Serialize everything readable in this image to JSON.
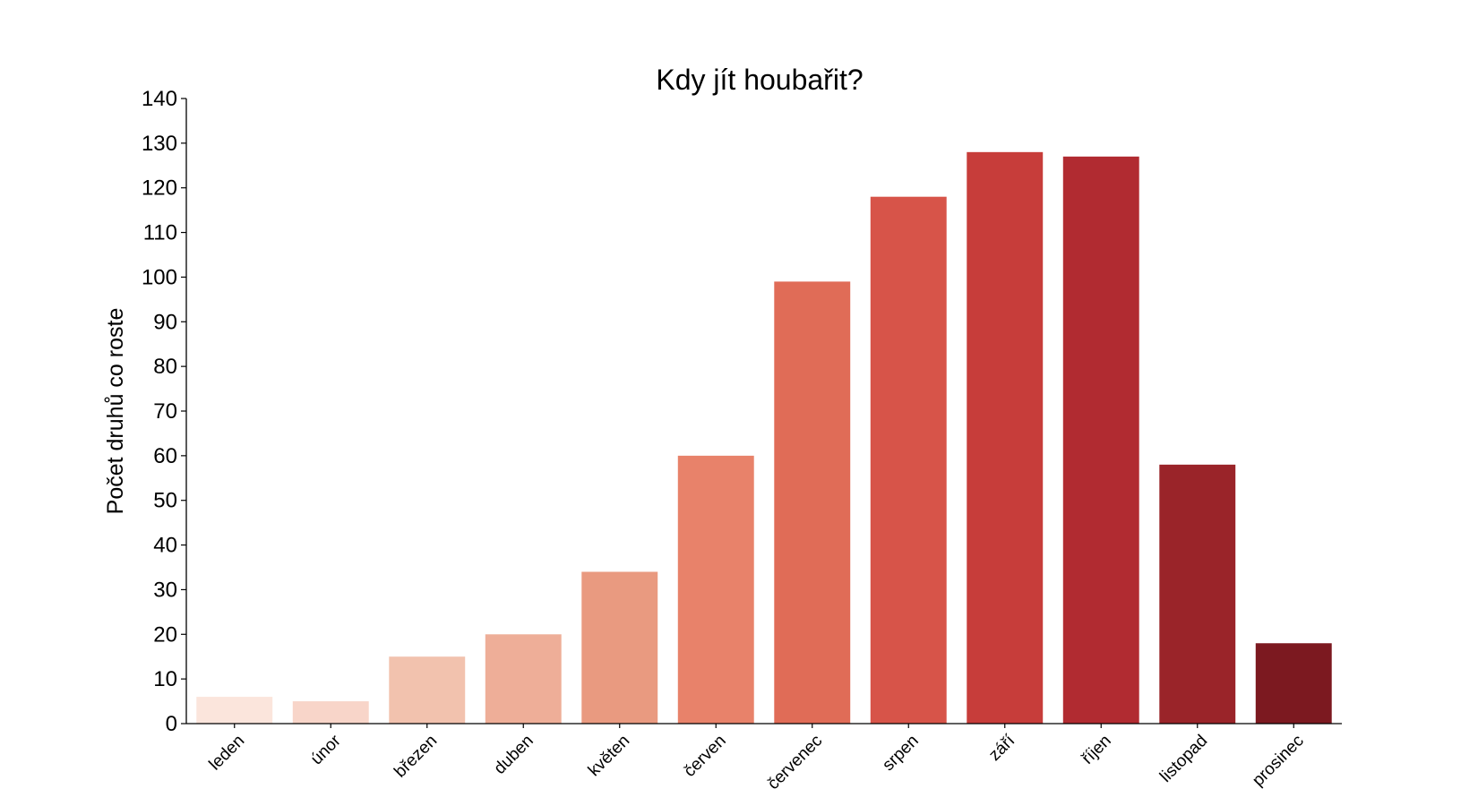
{
  "chart_data": {
    "type": "bar",
    "title": "Kdy jít houbařit?",
    "xlabel": "",
    "ylabel": "Počet druhů co roste",
    "ylim": [
      0,
      140
    ],
    "yticks": [
      0,
      10,
      20,
      30,
      40,
      50,
      60,
      70,
      80,
      90,
      100,
      110,
      120,
      130,
      140
    ],
    "grid": false,
    "legend": "none",
    "categories": [
      "leden",
      "únor",
      "březen",
      "duben",
      "květen",
      "červen",
      "červenec",
      "srpen",
      "září",
      "říjen",
      "listopad",
      "prosinec"
    ],
    "values": [
      6,
      5,
      15,
      20,
      34,
      60,
      99,
      118,
      128,
      127,
      58,
      18
    ],
    "colors": [
      "#fbe5dc",
      "#f8d5c9",
      "#f2c2ae",
      "#eeae98",
      "#e99a80",
      "#e8826a",
      "#e06c57",
      "#d75449",
      "#c73d3a",
      "#b12b31",
      "#9a2429",
      "#7c1920"
    ]
  }
}
